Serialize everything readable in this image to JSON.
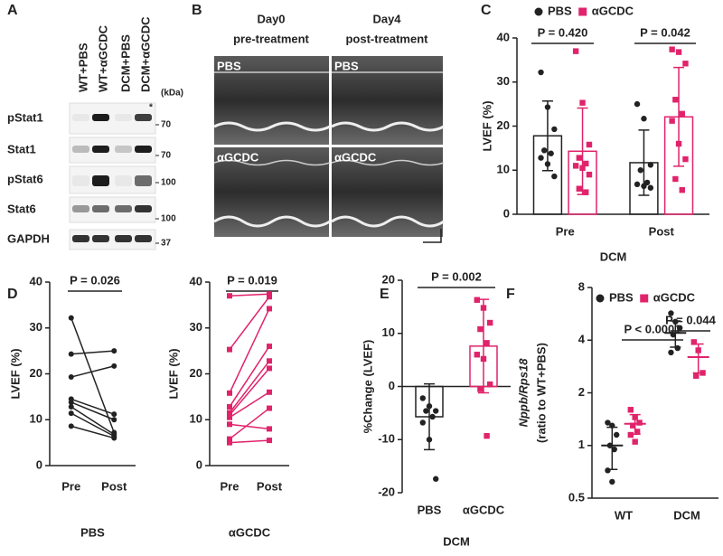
{
  "panel_labels": [
    "A",
    "B",
    "C",
    "D",
    "E",
    "F"
  ],
  "blot": {
    "lanes": [
      "WT+PBS",
      "WT+αGCDC",
      "DCM+PBS",
      "DCM+αGCDC"
    ],
    "unit": "(kDa)",
    "asterisk": "*",
    "rows": [
      {
        "name": "pStat1",
        "kda": "70"
      },
      {
        "name": "Stat1",
        "kda": "70"
      },
      {
        "name": "pStat6",
        "kda": "100"
      },
      {
        "name": "Stat6",
        "kda": "100"
      },
      {
        "name": "GAPDH",
        "kda": "37"
      }
    ]
  },
  "echo": {
    "columns": [
      {
        "day": "Day0",
        "phase": "pre-treatment"
      },
      {
        "day": "Day4",
        "phase": "post-treatment"
      }
    ],
    "rows": [
      [
        "PBS",
        "PBS"
      ],
      [
        "αGCDC",
        "αGCDC"
      ]
    ]
  },
  "chart_data": [
    {
      "type": "bar",
      "ylabel": "LVEF (%)",
      "xlabel": "DCM",
      "categories": [
        "Pre",
        "Post"
      ],
      "legend": true,
      "series": [
        {
          "name": "PBS",
          "color": "#222222",
          "marker": "circle",
          "values": [
            17.8,
            11.7
          ],
          "errors": [
            7.9,
            7.4
          ],
          "points": [
            [
              32.2,
              24.3,
              19.3,
              14.5,
              13.8,
              12.8,
              11.4,
              8.6
            ],
            [
              25.0,
              21.7,
              11.2,
              10.0,
              7.2,
              6.8,
              6.4,
              6.0
            ]
          ]
        },
        {
          "name": "αGCDC",
          "color": "#e0236b",
          "marker": "square",
          "values": [
            14.3,
            22.1
          ],
          "errors": [
            9.8,
            11.2
          ],
          "points": [
            [
              37.0,
              25.3,
              15.8,
              12.8,
              11.5,
              11.0,
              10.5,
              9.0,
              5.8,
              5.0
            ],
            [
              37.4,
              36.8,
              34.2,
              26.0,
              22.8,
              21.2,
              16.0,
              12.5,
              8.0,
              5.5
            ]
          ]
        }
      ],
      "ylim": [
        0,
        40
      ],
      "yticks": [
        0,
        10,
        20,
        30,
        40
      ],
      "annotations": [
        "P = 0.420",
        "P = 0.042"
      ]
    },
    {
      "type": "paired",
      "ylabel": "LVEF (%)",
      "xlabel": "PBS",
      "categories": [
        "Pre",
        "Post"
      ],
      "color": "#222222",
      "marker": "circle",
      "pairs": [
        [
          32.2,
          7.2
        ],
        [
          24.3,
          25.0
        ],
        [
          19.3,
          21.7
        ],
        [
          14.5,
          11.2
        ],
        [
          13.8,
          10.0
        ],
        [
          12.8,
          6.8
        ],
        [
          11.4,
          6.4
        ],
        [
          8.6,
          6.0
        ]
      ],
      "ylim": [
        0,
        40
      ],
      "yticks": [
        0,
        10,
        20,
        30,
        40
      ],
      "annotations": [
        "P = 0.026"
      ]
    },
    {
      "type": "paired",
      "ylabel": "LVEF (%)",
      "xlabel": "αGCDC",
      "categories": [
        "Pre",
        "Post"
      ],
      "color": "#e0236b",
      "marker": "square",
      "pairs": [
        [
          37.0,
          37.4
        ],
        [
          25.3,
          36.8
        ],
        [
          15.8,
          34.2
        ],
        [
          12.8,
          26.0
        ],
        [
          11.5,
          22.8
        ],
        [
          11.0,
          21.2
        ],
        [
          10.5,
          16.0
        ],
        [
          9.0,
          8.0
        ],
        [
          5.8,
          12.5
        ],
        [
          5.0,
          5.5
        ]
      ],
      "ylim": [
        0,
        40
      ],
      "yticks": [
        0,
        10,
        20,
        30,
        40
      ],
      "annotations": [
        "P = 0.019"
      ]
    },
    {
      "type": "bar",
      "ylabel": "%Change (LVEF)",
      "xlabel": "DCM",
      "categories": [
        "PBS",
        "αGCDC"
      ],
      "colors": [
        "#222222",
        "#e0236b"
      ],
      "markers": [
        "circle",
        "square"
      ],
      "values": [
        -5.7,
        7.6
      ],
      "errors": [
        6.2,
        8.8
      ],
      "points": [
        [
          -2.2,
          -3.7,
          -4.6,
          -4.6,
          -5.7,
          -6.8,
          -10.0,
          -17.4
        ],
        [
          16.3,
          14.8,
          12.0,
          10.8,
          8.2,
          6.0,
          5.2,
          0.4,
          -0.5,
          -9.3
        ]
      ],
      "ylim": [
        -20,
        20
      ],
      "yticks": [
        -20,
        -10,
        0,
        10,
        20
      ],
      "annotations": [
        "P = 0.002"
      ]
    },
    {
      "type": "dot",
      "ylabel": [
        "Nppb/Rps18",
        "(ratio to WT+PBS)"
      ],
      "categories": [
        "WT",
        "DCM"
      ],
      "legend": true,
      "log": true,
      "series": [
        {
          "name": "PBS",
          "color": "#222222",
          "marker": "circle",
          "values": [
            1.0,
            4.4
          ],
          "errors": [
            0.27,
            0.75
          ],
          "points": [
            [
              1.35,
              1.3,
              1.15,
              1.0,
              0.95,
              0.72,
              0.62
            ],
            [
              5.7,
              5.1,
              4.7,
              4.3,
              3.6,
              3.4
            ]
          ]
        },
        {
          "name": "αGCDC",
          "color": "#e0236b",
          "marker": "square",
          "values": [
            1.33,
            3.2
          ],
          "errors": [
            0.17,
            0.6
          ],
          "points": [
            [
              1.6,
              1.45,
              1.35,
              1.3,
              1.2,
              1.15,
              1.05
            ],
            [
              3.9,
              3.5,
              2.6,
              2.5
            ]
          ]
        }
      ],
      "ylim": [
        0.5,
        8
      ],
      "yticks": [
        0.5,
        1,
        2,
        4,
        8
      ],
      "annotations": [
        "P < 0.0001",
        "P = 0.044"
      ]
    }
  ]
}
